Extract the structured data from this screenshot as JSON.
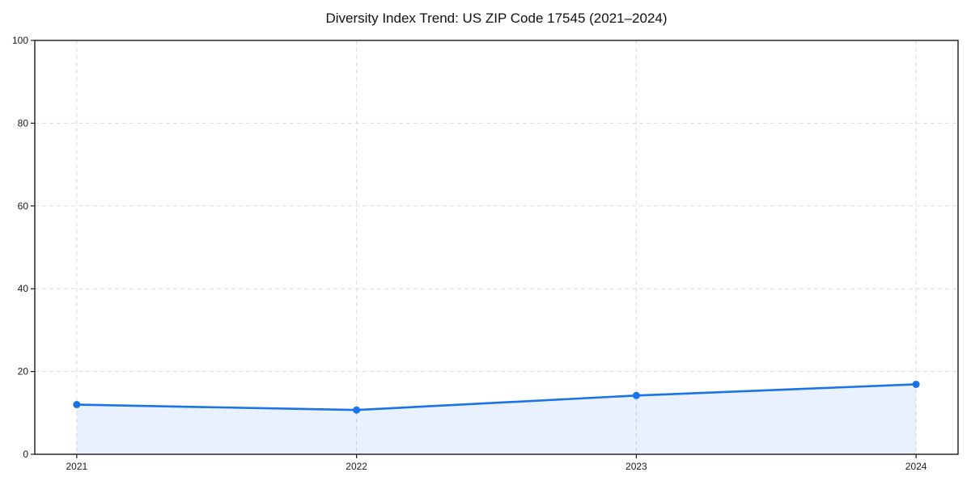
{
  "title": "Diversity Index Trend: US ZIP Code 17545 (2021–2024)",
  "chart_data": {
    "type": "area",
    "title": "Diversity Index Trend: US ZIP Code 17545 (2021–2024)",
    "categories": [
      "2021",
      "2022",
      "2023",
      "2024"
    ],
    "x": [
      2021,
      2022,
      2023,
      2024
    ],
    "series": [
      {
        "name": "Diversity Index",
        "values": [
          12.0,
          10.7,
          14.2,
          16.9
        ]
      }
    ],
    "xlabel": "",
    "ylabel": "",
    "xlim": [
      2020.85,
      2024.15
    ],
    "ylim": [
      0,
      100
    ],
    "yticks": [
      0,
      20,
      40,
      60,
      80,
      100
    ],
    "grid": true,
    "grid_style": "dashed",
    "legend": "none",
    "marker": "circle",
    "colors": {
      "line": "#1a73e8",
      "marker": "#1a73e8",
      "fill": "#1a73e8",
      "fill_opacity": 0.1,
      "grid": "#dcdcdc",
      "spine": "#1a1a1a",
      "tick_label": "#1a1a1a",
      "title": "#111111",
      "background": "#ffffff"
    }
  }
}
